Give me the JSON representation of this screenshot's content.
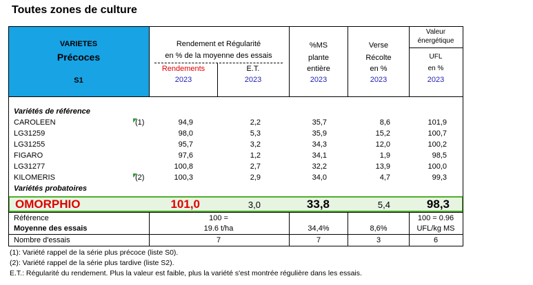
{
  "title": "Toutes zones de culture",
  "header": {
    "varietes": "VARIETES",
    "precoces": "Précoces",
    "serie": "S1",
    "rendement_line1": "Rendement et Régularité",
    "rendement_line2": "en % de la moyenne des essais",
    "rendements": "Rendements",
    "et": "E.T.",
    "ms_line1": "%MS",
    "ms_line2": "plante",
    "ms_line3": "entière",
    "verse_line1": "Verse",
    "verse_line2": "Récolte",
    "verse_line3": "en %",
    "valeur_line1": "Valeur",
    "valeur_line2": "énergétique",
    "valeur_line3": "UFL",
    "valeur_line4": "en %",
    "year": "2023"
  },
  "sections": {
    "reference": "Variétés de référence",
    "probatoires": "Variétés probatoires"
  },
  "rows": [
    {
      "name": "CAROLEEN",
      "note": "(1)",
      "rend": "94,9",
      "et": "2,2",
      "ms": "35,7",
      "verse": "8,6",
      "ufl": "101,9"
    },
    {
      "name": "LG31259",
      "note": "",
      "rend": "98,0",
      "et": "5,3",
      "ms": "35,9",
      "verse": "15,2",
      "ufl": "100,7"
    },
    {
      "name": "LG31255",
      "note": "",
      "rend": "95,7",
      "et": "3,2",
      "ms": "34,3",
      "verse": "12,0",
      "ufl": "100,2"
    },
    {
      "name": "FIGARO",
      "note": "",
      "rend": "97,6",
      "et": "1,2",
      "ms": "34,1",
      "verse": "1,9",
      "ufl": "98,5"
    },
    {
      "name": "LG31277",
      "note": "",
      "rend": "100,8",
      "et": "2,7",
      "ms": "32,2",
      "verse": "13,9",
      "ufl": "100,0"
    },
    {
      "name": "KILOMERIS",
      "note": "(2)",
      "rend": "100,3",
      "et": "2,9",
      "ms": "34,0",
      "verse": "4,7",
      "ufl": "99,3"
    }
  ],
  "highlight": {
    "name": "OMORPHIO",
    "rend": "101,0",
    "et": "3,0",
    "ms": "33,8",
    "verse": "5,4",
    "ufl": "98,3"
  },
  "summary": {
    "reference_label": "Référence",
    "reference_rend": "100 =",
    "reference_ufl": "100 = 0.96",
    "moyenne_label": "Moyenne des essais",
    "moyenne_rend": "19.6 t/ha",
    "moyenne_ms": "34,4%",
    "moyenne_verse": "8,6%",
    "moyenne_ufl": "UFL/kg MS",
    "nombre_label": "Nombre d'essais",
    "nombre_rend": "7",
    "nombre_ms": "7",
    "nombre_verse": "3",
    "nombre_ufl": "6"
  },
  "footnotes": [
    "(1): Variété rappel de la série plus précoce (liste S0).",
    "(2): Variété rappel de la série plus tardive (liste S2).",
    "E.T.: Régularité du rendement. Plus la valeur est faible, plus la variété s'est montrée régulière dans les essais."
  ],
  "colors": {
    "header_blue": "#18a3e4",
    "highlight_green": "#4caf2a",
    "year_blue": "#1f1fb0",
    "red": "#e00000"
  }
}
